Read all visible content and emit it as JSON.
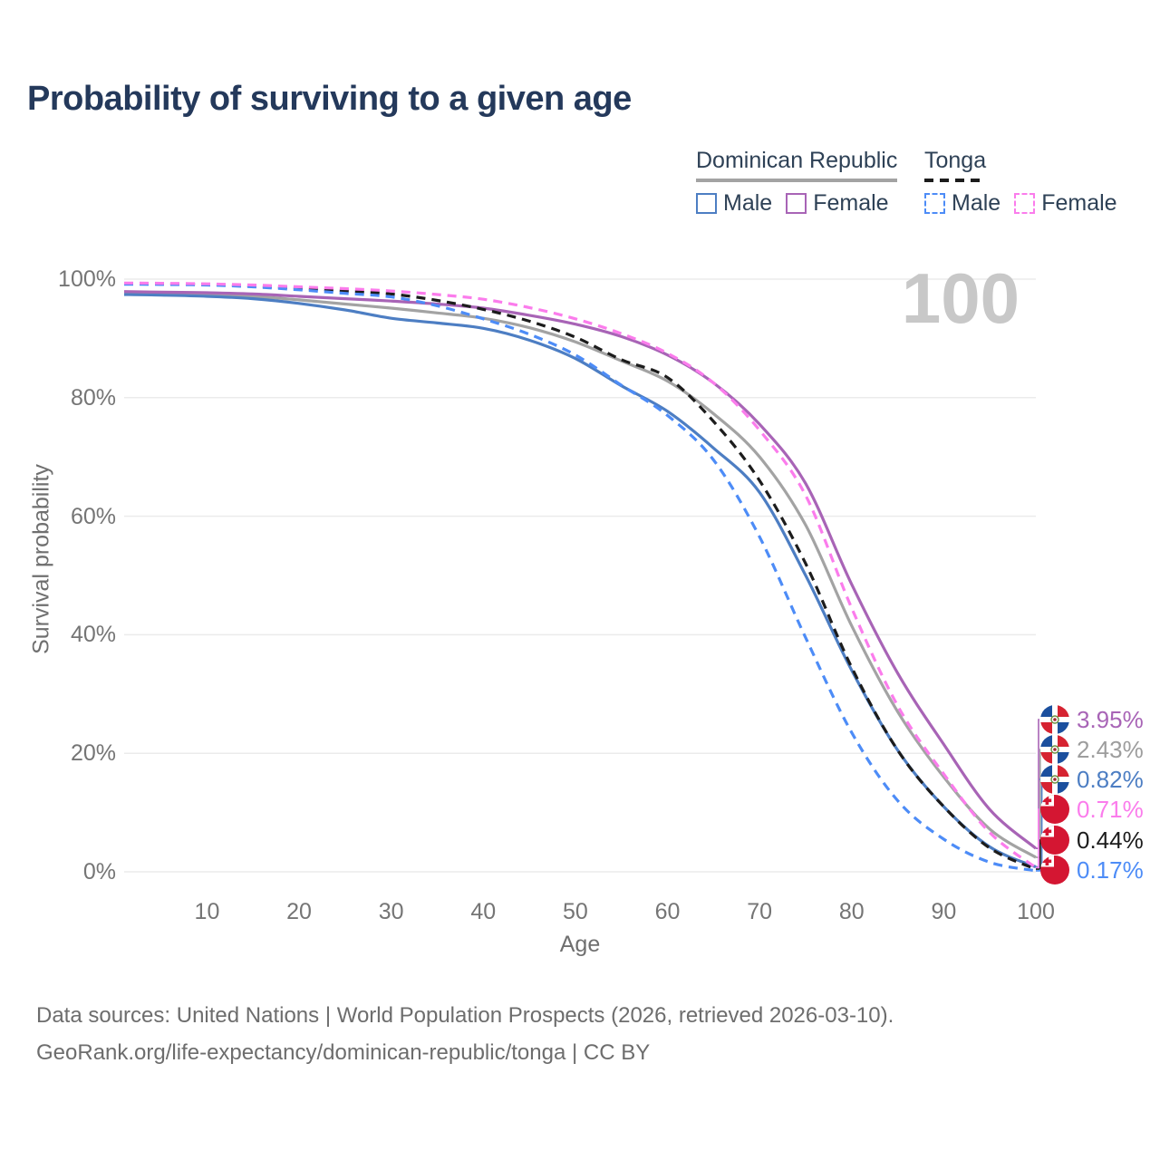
{
  "title": "Probability of surviving to a given age",
  "watermark": "100",
  "legend": {
    "groups": [
      {
        "id": "dominican-republic",
        "label": "Dominican Republic",
        "line_style": "solid",
        "line_color": "#a3a3a3",
        "entries": [
          {
            "label": "Male",
            "color": "#4d7ec3",
            "style": "solid"
          },
          {
            "label": "Female",
            "color": "#a864b6",
            "style": "solid"
          }
        ]
      },
      {
        "id": "tonga",
        "label": "Tonga",
        "line_style": "dashed",
        "line_color": "#1c1c1c",
        "entries": [
          {
            "label": "Male",
            "color": "#4d8cf7",
            "style": "dashed"
          },
          {
            "label": "Female",
            "color": "#fb7cec",
            "style": "dashed"
          }
        ]
      }
    ]
  },
  "chart_data": {
    "type": "line",
    "title": "Probability of surviving to a given age",
    "xlabel": "Age",
    "ylabel": "Survival probability",
    "xlim": [
      1,
      100
    ],
    "ylim": [
      0,
      100
    ],
    "x_ticks": [
      10,
      20,
      30,
      40,
      50,
      60,
      70,
      80,
      90,
      100
    ],
    "y_ticks": [
      0,
      20,
      40,
      60,
      80,
      100
    ],
    "y_tick_suffix": "%",
    "grid": "horizontal",
    "legend_position": "top-right",
    "ages": [
      1,
      5,
      10,
      15,
      20,
      25,
      30,
      35,
      40,
      45,
      50,
      55,
      60,
      65,
      70,
      75,
      80,
      85,
      90,
      95,
      100
    ],
    "series": [
      {
        "name": "Dominican Republic — Female",
        "country": "Dominican Republic",
        "sex": "Female",
        "color": "#a864b6",
        "dash": "solid",
        "end_label": "3.95%",
        "values": [
          97.9,
          97.8,
          97.7,
          97.5,
          97.1,
          96.7,
          96.3,
          95.8,
          95.1,
          93.9,
          92.4,
          90.3,
          87.2,
          82.5,
          75.5,
          65.5,
          48.5,
          33.5,
          21.5,
          10.5,
          3.95
        ]
      },
      {
        "name": "Dominican Republic — Both sexes",
        "country": "Dominican Republic",
        "sex": "Both",
        "color": "#a3a3a3",
        "dash": "solid",
        "end_label": "2.43%",
        "values": [
          97.7,
          97.6,
          97.4,
          97.1,
          96.5,
          95.8,
          95.1,
          94.3,
          93.4,
          91.8,
          89.4,
          86.2,
          82.8,
          77.3,
          70.0,
          58.5,
          41.5,
          27.0,
          16.0,
          7.2,
          2.43
        ]
      },
      {
        "name": "Dominican Republic — Male",
        "country": "Dominican Republic",
        "sex": "Male",
        "color": "#4d7ec3",
        "dash": "solid",
        "end_label": "0.82%",
        "values": [
          97.4,
          97.3,
          97.1,
          96.7,
          95.9,
          94.8,
          93.4,
          92.6,
          91.7,
          89.7,
          86.6,
          82.0,
          77.7,
          71.5,
          64.0,
          50.0,
          34.0,
          20.5,
          11.0,
          4.2,
          0.82
        ]
      },
      {
        "name": "Tonga — Female",
        "country": "Tonga",
        "sex": "Female",
        "color": "#fb7cec",
        "dash": "dashed",
        "end_label": "0.71%",
        "values": [
          99.35,
          99.3,
          99.2,
          99.0,
          98.7,
          98.4,
          98.0,
          97.4,
          96.6,
          95.2,
          93.3,
          90.8,
          87.5,
          82.5,
          74.5,
          63.5,
          44.5,
          28.0,
          16.5,
          6.6,
          0.71
        ]
      },
      {
        "name": "Tonga — Both sexes",
        "country": "Tonga",
        "sex": "Both",
        "color": "#1c1c1c",
        "dash": "dashed",
        "end_label": "0.44%",
        "values": [
          99.25,
          99.2,
          99.1,
          98.85,
          98.45,
          98.0,
          97.5,
          96.4,
          94.9,
          92.9,
          90.2,
          86.4,
          83.4,
          76.0,
          66.0,
          52.0,
          34.5,
          20.5,
          11.0,
          4.0,
          0.44
        ]
      },
      {
        "name": "Tonga — Male",
        "country": "Tonga",
        "sex": "Male",
        "color": "#4d8cf7",
        "dash": "dashed",
        "end_label": "0.17%",
        "values": [
          99.15,
          99.1,
          99.0,
          98.7,
          98.2,
          97.6,
          97.0,
          95.5,
          93.3,
          90.7,
          87.2,
          82.1,
          77.0,
          69.5,
          56.5,
          39.5,
          23.5,
          12.0,
          5.5,
          1.6,
          0.17
        ]
      }
    ],
    "end_labels": [
      {
        "text": "3.95%",
        "flag": "dominican-republic",
        "color": "#a864b6"
      },
      {
        "text": "2.43%",
        "flag": "dominican-republic",
        "color": "#9d9d9d"
      },
      {
        "text": "0.82%",
        "flag": "dominican-republic",
        "color": "#4d7ec3"
      },
      {
        "text": "0.71%",
        "flag": "tonga",
        "color": "#fb7cec"
      },
      {
        "text": "0.44%",
        "flag": "tonga",
        "color": "#1c1c1c"
      },
      {
        "text": "0.17%",
        "flag": "tonga",
        "color": "#4d8cf7"
      }
    ]
  },
  "footer": {
    "line1": "Data sources: United Nations | World Population Prospects (2026, retrieved 2026-03-10).",
    "line2": "GeoRank.org/life-expectancy/dominican-republic/tonga | CC BY"
  }
}
